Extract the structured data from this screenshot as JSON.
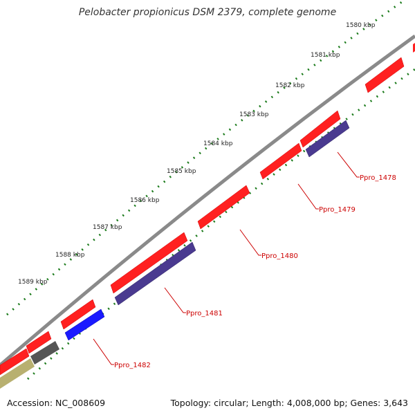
{
  "title": "Pelobacter propionicus DSM 2379, complete genome",
  "accession": "Accession: NC_008609",
  "summary": "Topology: circular; Length: 4,008,000 bp; Genes: 3,643",
  "scale_labels": [
    "1580 kbp",
    "1581 kbp",
    "1582 kbp",
    "1583 kbp",
    "1584 kbp",
    "1585 kbp",
    "1586 kbp",
    "1587 kbp",
    "1588 kbp",
    "1589 kbp"
  ],
  "gene_labels": [
    "Ppro_1478",
    "Ppro_1479",
    "Ppro_1480",
    "Ppro_1481",
    "Ppro_1482"
  ],
  "colors": {
    "forward_gene": "#ff2020",
    "reverse_gene": "#4a3a90",
    "highlight_gene": "#1a1aff",
    "backbone": "#888888",
    "ticks": "#1a7a1a",
    "label": "#cc0000"
  }
}
